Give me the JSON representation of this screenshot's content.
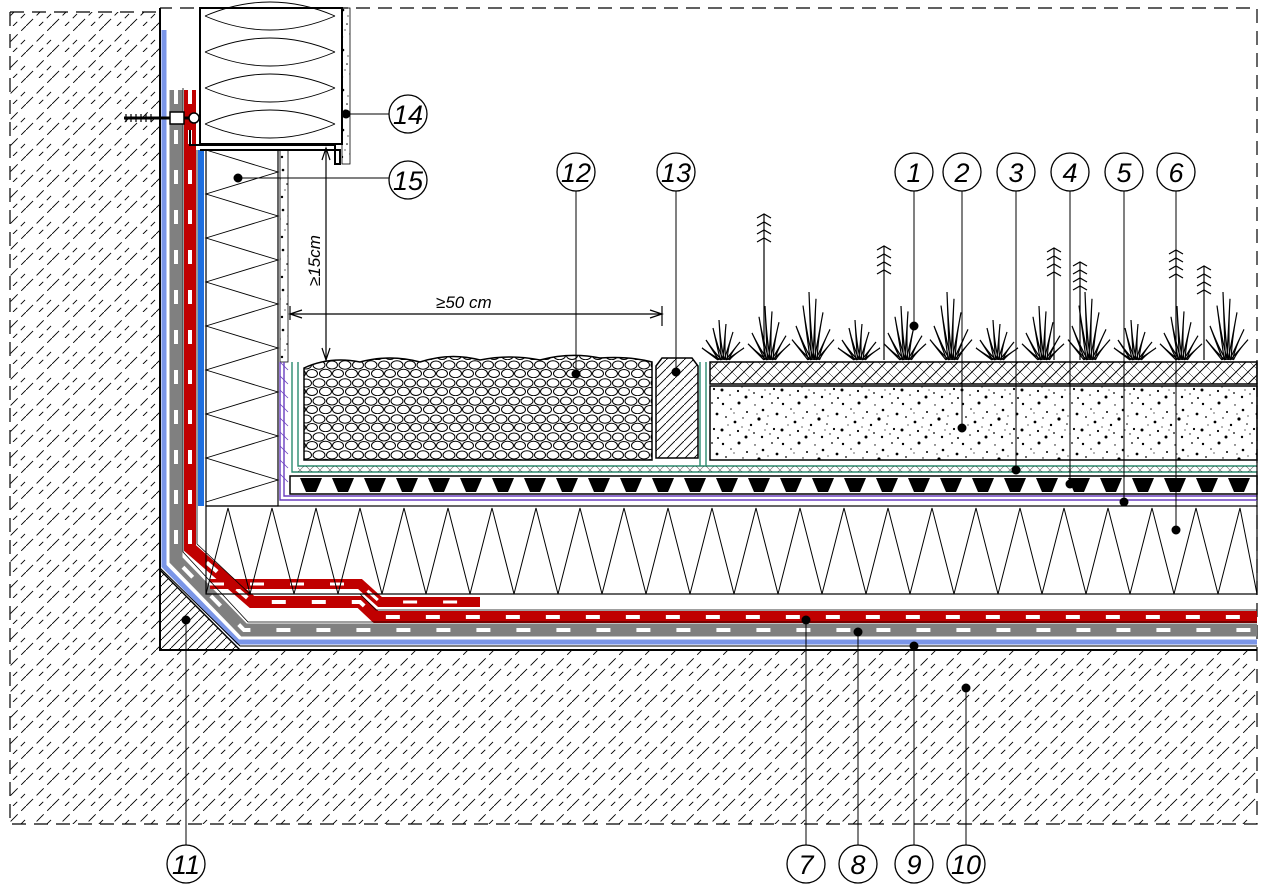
{
  "dimensions": {
    "vertical": "≥15cm",
    "horizontal": "≥50 cm"
  },
  "callouts": [
    {
      "label": "1"
    },
    {
      "label": "2"
    },
    {
      "label": "3"
    },
    {
      "label": "4"
    },
    {
      "label": "5"
    },
    {
      "label": "6"
    },
    {
      "label": "7"
    },
    {
      "label": "8"
    },
    {
      "label": "9"
    },
    {
      "label": "10"
    },
    {
      "label": "11"
    },
    {
      "label": "12"
    },
    {
      "label": "13"
    },
    {
      "label": "14"
    },
    {
      "label": "15"
    }
  ],
  "colors": {
    "membrane_red": "#c00000",
    "membrane_grey": "#808080",
    "membrane_blue": "#7b96e8",
    "vapour_blue": "#1e6fe0",
    "filter_green": "#2b8a6e",
    "drain_purple": "#6a3fbf"
  }
}
